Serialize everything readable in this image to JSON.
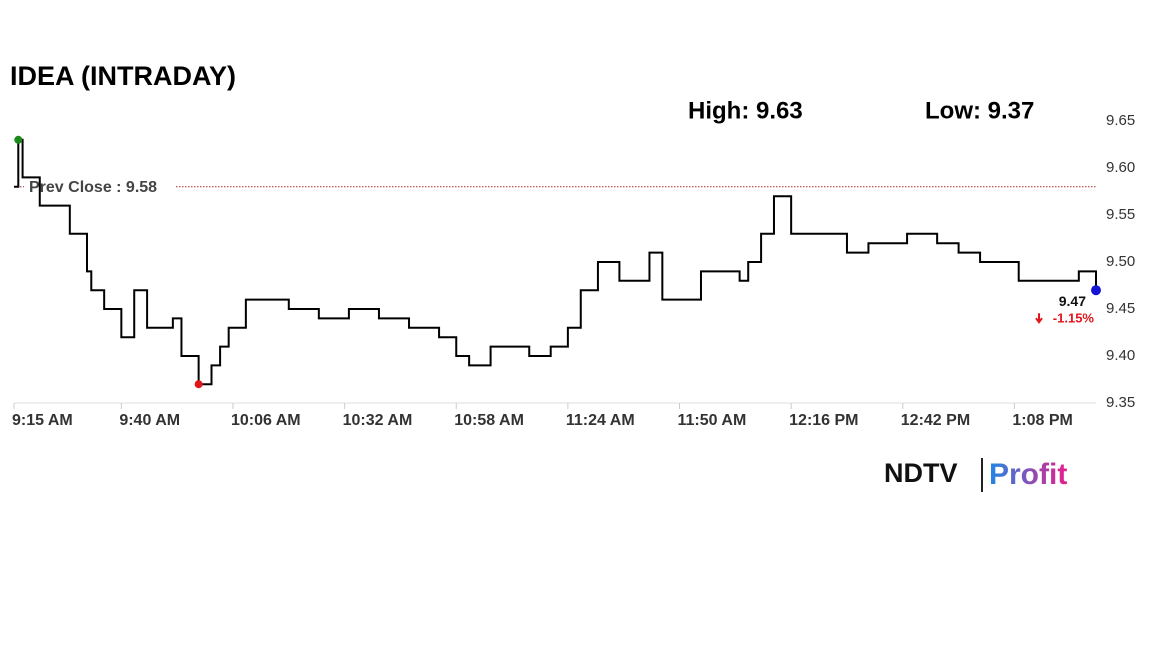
{
  "chart_data": {
    "type": "line",
    "title": "IDEA (INTRADAY)",
    "high_label": "High: 9.63",
    "low_label": "Low: 9.37",
    "prev_close": 9.58,
    "prev_close_label": "Prev Close : 9.58",
    "last_label": "9.47",
    "change_label": "-1.15%",
    "logo": {
      "left": "NDTV",
      "right": "Profit"
    },
    "x": [
      555,
      556,
      557,
      561,
      565,
      568,
      572,
      573,
      576,
      580,
      583,
      586,
      592,
      594,
      598,
      601,
      603,
      605,
      609,
      617,
      619,
      626,
      633,
      640,
      647,
      654,
      658,
      661,
      666,
      675,
      680,
      684,
      687,
      691,
      696,
      701,
      703,
      706,
      711,
      715,
      724,
      726,
      729,
      732,
      736,
      742,
      749,
      754,
      763,
      770,
      775,
      780,
      784,
      789,
      794,
      803,
      807
    ],
    "series": [
      {
        "name": "IDEA",
        "color": "#000000",
        "values": [
          9.58,
          9.63,
          9.59,
          9.56,
          9.56,
          9.53,
          9.49,
          9.47,
          9.45,
          9.42,
          9.47,
          9.43,
          9.44,
          9.4,
          9.37,
          9.39,
          9.41,
          9.43,
          9.46,
          9.46,
          9.45,
          9.44,
          9.45,
          9.44,
          9.43,
          9.42,
          9.4,
          9.39,
          9.41,
          9.4,
          9.41,
          9.43,
          9.47,
          9.5,
          9.48,
          9.48,
          9.51,
          9.46,
          9.46,
          9.49,
          9.48,
          9.5,
          9.53,
          9.57,
          9.53,
          9.53,
          9.51,
          9.52,
          9.53,
          9.52,
          9.51,
          9.5,
          9.5,
          9.48,
          9.48,
          9.49,
          9.47
        ]
      }
    ],
    "markers": {
      "high": {
        "index": 1,
        "color": "#1a8a1a"
      },
      "low": {
        "index": 14,
        "color": "#e0161b"
      },
      "last": {
        "index": 56,
        "color": "#1515d6"
      }
    },
    "prev_close_color": "#a52a2a",
    "change_color": "#e0161b",
    "xlim": [
      555,
      807
    ],
    "xticks": [
      {
        "value": 555,
        "label": "9:15 AM"
      },
      {
        "value": 580,
        "label": "9:40 AM"
      },
      {
        "value": 606,
        "label": "10:06 AM"
      },
      {
        "value": 632,
        "label": "10:32 AM"
      },
      {
        "value": 658,
        "label": "10:58 AM"
      },
      {
        "value": 684,
        "label": "11:24 AM"
      },
      {
        "value": 710,
        "label": "11:50 AM"
      },
      {
        "value": 736,
        "label": "12:16 PM"
      },
      {
        "value": 762,
        "label": "12:42 PM"
      },
      {
        "value": 788,
        "label": "1:08 PM"
      }
    ],
    "ylim": [
      9.35,
      9.65
    ],
    "yticks": [
      9.35,
      {
        "value": 9.4,
        "label": "9.40"
      },
      9.45,
      {
        "value": 9.5,
        "label": "9.50"
      },
      9.55,
      {
        "value": 9.6,
        "label": "9.60"
      },
      9.65
    ]
  }
}
